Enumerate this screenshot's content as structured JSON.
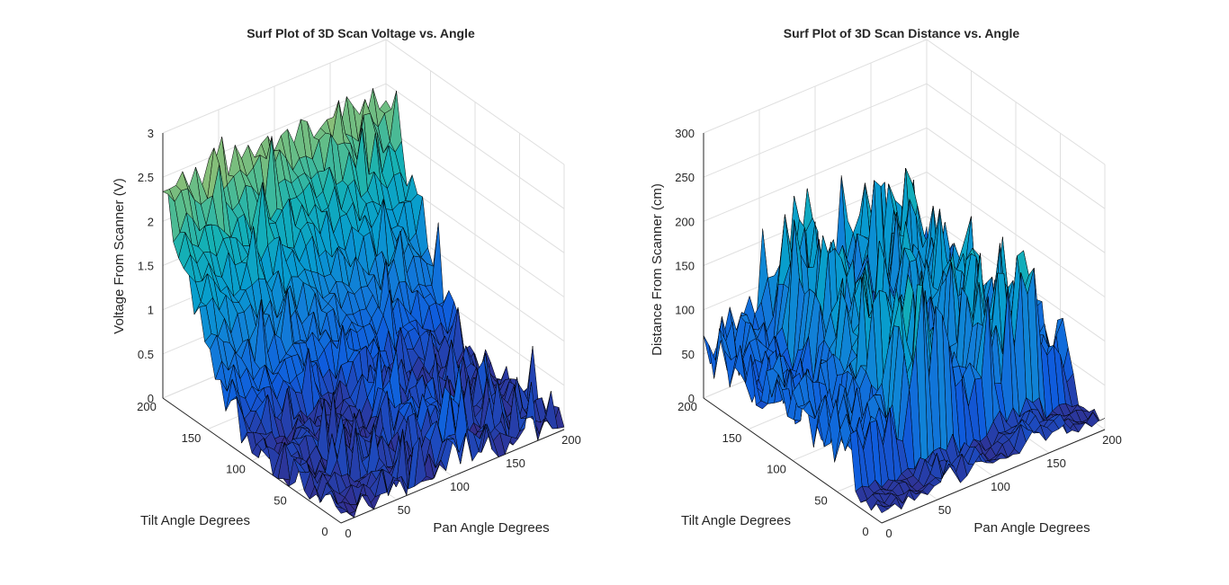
{
  "chart_data": [
    {
      "type": "surface",
      "title": "Surf Plot of 3D Scan Voltage vs. Angle",
      "xlabel": "Pan Angle Degrees",
      "ylabel": "Tilt Angle Degrees",
      "zlabel": "Voltage From Scanner (V)",
      "xlim": [
        0,
        200
      ],
      "ylim": [
        0,
        200
      ],
      "zlim": [
        0,
        3
      ],
      "xticks": [
        "0",
        "50",
        "100",
        "150",
        "200"
      ],
      "yticks": [
        "0",
        "50",
        "100",
        "150",
        "200"
      ],
      "zticks": [
        "0",
        "0.5",
        "1",
        "1.5",
        "2",
        "2.5",
        "3"
      ],
      "grid": true,
      "colormap": "parula"
    },
    {
      "type": "surface",
      "title": "Surf Plot of 3D Scan Distance vs. Angle",
      "xlabel": "Pan Angle Degrees",
      "ylabel": "Tilt Angle Degrees",
      "zlabel": "Distance From Scanner (cm)",
      "xlim": [
        0,
        200
      ],
      "ylim": [
        0,
        200
      ],
      "zlim": [
        0,
        300
      ],
      "xticks": [
        "0",
        "50",
        "100",
        "150",
        "200"
      ],
      "yticks": [
        "0",
        "50",
        "100",
        "150",
        "200"
      ],
      "zticks": [
        "0",
        "50",
        "100",
        "150",
        "200",
        "250",
        "300"
      ],
      "grid": true,
      "colormap": "parula"
    }
  ]
}
